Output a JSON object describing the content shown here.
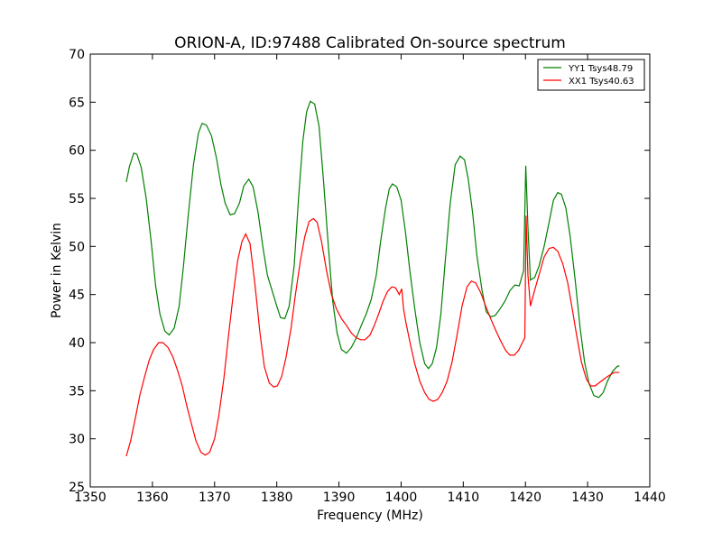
{
  "chart_data": {
    "type": "line",
    "title": "ORION-A, ID:97488 Calibrated On-source spectrum",
    "xlabel": "Frequency (MHz)",
    "ylabel": "Power in Kelvin",
    "xlim": [
      1350,
      1440
    ],
    "ylim": [
      25,
      70
    ],
    "xticks": [
      1350,
      1360,
      1370,
      1380,
      1390,
      1400,
      1410,
      1420,
      1430,
      1440
    ],
    "yticks": [
      25,
      30,
      35,
      40,
      45,
      50,
      55,
      60,
      65,
      70
    ],
    "grid": false,
    "legend_position": "top-right",
    "series": [
      {
        "name": "YY1 Tsys48.79",
        "color": "#008000",
        "x": [
          1355.8,
          1356.3,
          1357.0,
          1357.5,
          1358.2,
          1359.0,
          1359.8,
          1360.5,
          1361.2,
          1362.0,
          1362.7,
          1363.5,
          1364.3,
          1365.0,
          1365.8,
          1366.6,
          1367.4,
          1368.0,
          1368.7,
          1369.5,
          1370.3,
          1371.0,
          1371.7,
          1372.5,
          1373.2,
          1374.0,
          1374.7,
          1375.5,
          1376.2,
          1377.0,
          1377.8,
          1378.5,
          1379.3,
          1380.0,
          1380.6,
          1381.3,
          1382.0,
          1382.8,
          1383.5,
          1384.2,
          1384.8,
          1385.4,
          1386.1,
          1386.8,
          1387.5,
          1388.3,
          1389.0,
          1389.7,
          1390.4,
          1391.2,
          1392.0,
          1392.8,
          1393.6,
          1394.4,
          1395.2,
          1396.0,
          1396.7,
          1397.5,
          1398.1,
          1398.6,
          1399.3,
          1400.0,
          1400.7,
          1401.4,
          1402.2,
          1403.0,
          1403.8,
          1404.4,
          1405.0,
          1405.7,
          1406.4,
          1407.1,
          1407.9,
          1408.7,
          1409.5,
          1410.2,
          1410.8,
          1411.5,
          1412.2,
          1413.0,
          1413.7,
          1414.4,
          1415.1,
          1415.9,
          1416.7,
          1417.5,
          1418.3,
          1419.0,
          1419.7,
          1420.05,
          1420.4,
          1420.8,
          1421.5,
          1422.2,
          1423.0,
          1423.8,
          1424.5,
          1425.2,
          1425.8,
          1426.5,
          1427.2,
          1428.0,
          1428.8,
          1429.5,
          1430.2,
          1431.0,
          1431.8,
          1432.5,
          1433.2,
          1434.0,
          1434.7,
          1435.1
        ],
        "values": [
          56.7,
          58.3,
          59.7,
          59.6,
          58.2,
          55.0,
          50.5,
          46.0,
          43.0,
          41.2,
          40.8,
          41.5,
          43.8,
          48.0,
          53.5,
          58.5,
          61.8,
          62.8,
          62.6,
          61.5,
          59.2,
          56.5,
          54.5,
          53.3,
          53.4,
          54.5,
          56.3,
          57.0,
          56.2,
          53.5,
          49.8,
          47.0,
          45.3,
          43.8,
          42.6,
          42.5,
          43.8,
          48.0,
          55.0,
          61.0,
          64.0,
          65.1,
          64.8,
          62.5,
          57.0,
          50.0,
          44.3,
          41.0,
          39.3,
          38.9,
          39.5,
          40.5,
          41.8,
          43.0,
          44.5,
          47.0,
          50.5,
          54.0,
          56.0,
          56.5,
          56.2,
          54.8,
          51.5,
          47.5,
          43.5,
          40.0,
          37.8,
          37.3,
          37.8,
          39.5,
          43.0,
          48.5,
          54.5,
          58.5,
          59.4,
          59.0,
          57.0,
          53.5,
          49.0,
          45.5,
          43.2,
          42.7,
          42.8,
          43.5,
          44.3,
          45.4,
          46.0,
          45.9,
          47.5,
          58.4,
          52.0,
          46.5,
          46.8,
          48.0,
          50.0,
          52.5,
          54.8,
          55.6,
          55.4,
          54.0,
          51.0,
          46.5,
          41.5,
          38.0,
          35.8,
          34.5,
          34.3,
          34.8,
          36.0,
          37.0,
          37.5,
          37.6
        ]
      },
      {
        "name": "XX1 Tsys40.63",
        "color": "#ff0000",
        "x": [
          1355.8,
          1356.5,
          1357.3,
          1358.0,
          1358.8,
          1359.5,
          1360.2,
          1361.0,
          1361.7,
          1362.5,
          1363.3,
          1364.0,
          1364.8,
          1365.5,
          1366.3,
          1367.0,
          1367.8,
          1368.5,
          1369.2,
          1370.0,
          1370.7,
          1371.5,
          1372.2,
          1373.0,
          1373.7,
          1374.4,
          1375.0,
          1375.7,
          1376.5,
          1377.3,
          1378.0,
          1378.8,
          1379.5,
          1380.1,
          1380.8,
          1381.5,
          1382.3,
          1383.0,
          1383.8,
          1384.5,
          1385.2,
          1385.9,
          1386.5,
          1387.2,
          1388.0,
          1388.8,
          1389.6,
          1390.4,
          1391.2,
          1392.0,
          1392.8,
          1393.5,
          1394.2,
          1395.0,
          1395.7,
          1396.4,
          1397.1,
          1397.8,
          1398.5,
          1399.1,
          1399.7,
          1400.1,
          1400.4,
          1400.8,
          1401.5,
          1402.2,
          1403.0,
          1403.8,
          1404.5,
          1405.2,
          1405.9,
          1406.6,
          1407.4,
          1408.2,
          1409.0,
          1409.8,
          1410.6,
          1411.3,
          1412.0,
          1412.8,
          1413.6,
          1414.4,
          1415.2,
          1416.0,
          1416.8,
          1417.5,
          1418.2,
          1418.9,
          1419.5,
          1419.9,
          1420.1,
          1420.4,
          1420.8,
          1421.5,
          1422.3,
          1423.0,
          1423.8,
          1424.5,
          1425.2,
          1426.0,
          1426.8,
          1427.5,
          1428.3,
          1429.0,
          1429.8,
          1430.5,
          1431.2,
          1432.0,
          1432.8,
          1433.5,
          1434.3,
          1435.1
        ],
        "values": [
          28.2,
          29.8,
          32.3,
          34.6,
          36.6,
          38.2,
          39.3,
          40.0,
          40.0,
          39.5,
          38.5,
          37.2,
          35.5,
          33.5,
          31.5,
          29.8,
          28.6,
          28.3,
          28.6,
          30.0,
          32.5,
          36.3,
          40.5,
          45.0,
          48.5,
          50.5,
          51.3,
          50.3,
          46.0,
          41.0,
          37.5,
          35.8,
          35.4,
          35.5,
          36.5,
          38.5,
          41.5,
          45.0,
          48.5,
          51.0,
          52.6,
          52.9,
          52.5,
          50.5,
          47.5,
          45.0,
          43.5,
          42.5,
          41.8,
          41.0,
          40.5,
          40.3,
          40.3,
          40.8,
          41.8,
          43.0,
          44.3,
          45.3,
          45.8,
          45.7,
          45.0,
          45.6,
          43.5,
          42.0,
          39.8,
          37.8,
          36.0,
          34.8,
          34.1,
          33.9,
          34.1,
          34.8,
          36.0,
          38.0,
          40.8,
          43.8,
          45.8,
          46.4,
          46.2,
          45.2,
          43.8,
          42.5,
          41.3,
          40.2,
          39.2,
          38.7,
          38.7,
          39.2,
          40.0,
          40.5,
          53.2,
          47.0,
          43.8,
          45.5,
          47.3,
          48.9,
          49.8,
          49.9,
          49.5,
          48.2,
          46.2,
          43.6,
          40.5,
          38.0,
          36.2,
          35.5,
          35.5,
          35.9,
          36.3,
          36.6,
          36.9,
          36.9
        ]
      }
    ]
  }
}
